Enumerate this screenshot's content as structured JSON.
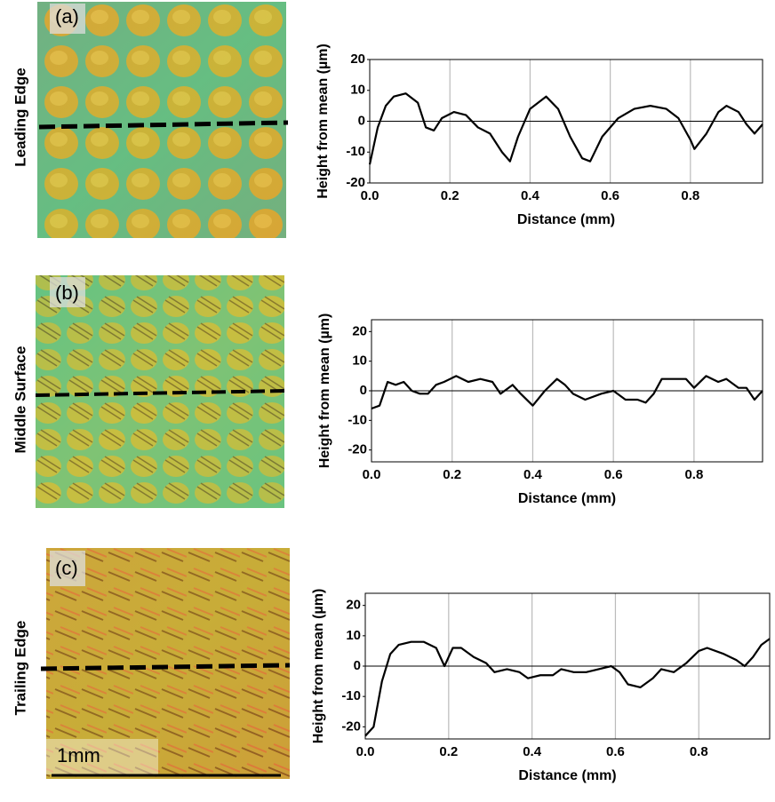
{
  "panels": [
    {
      "label": "(a)",
      "side_label": "Leading Edge"
    },
    {
      "label": "(b)",
      "side_label": "Middle Surface"
    },
    {
      "label": "(c)",
      "side_label": "Trailing Edge"
    }
  ],
  "scale_bar": "1mm",
  "chart_data": [
    {
      "type": "line",
      "x_label": "Distance (mm)",
      "y_label": "Height from mean (µm)",
      "xlim": [
        0,
        0.98
      ],
      "ylim": [
        -20,
        20
      ],
      "xticks": [
        {
          "value": 0,
          "label": "0.0"
        },
        0.2,
        0.4,
        0.6,
        0.8
      ],
      "yticks": [
        -20,
        -10,
        0,
        10,
        20
      ],
      "grid": "x",
      "zero_line": true,
      "x": [
        0,
        0.02,
        0.04,
        0.06,
        0.09,
        0.12,
        0.14,
        0.16,
        0.18,
        0.21,
        0.24,
        0.27,
        0.3,
        0.33,
        0.35,
        0.37,
        0.4,
        0.44,
        0.47,
        0.5,
        0.53,
        0.55,
        0.58,
        0.62,
        0.66,
        0.7,
        0.74,
        0.77,
        0.8,
        0.81,
        0.84,
        0.87,
        0.89,
        0.92,
        0.94,
        0.96,
        0.98
      ],
      "series": [
        {
          "color": "#000000",
          "values": [
            -14,
            -2,
            5,
            8,
            9,
            6,
            -2,
            -3,
            1,
            3,
            2,
            -2,
            -4,
            -10,
            -13,
            -5,
            4,
            8,
            4,
            -5,
            -12,
            -13,
            -5,
            1,
            4,
            5,
            4,
            1,
            -6,
            -9,
            -4,
            3,
            5,
            3,
            -1,
            -4,
            -1
          ]
        }
      ]
    },
    {
      "type": "line",
      "x_label": "Distance (mm)",
      "y_label": "Height from mean (µm)",
      "xlim": [
        0,
        0.97
      ],
      "ylim": [
        -24,
        24
      ],
      "xticks": [
        {
          "value": 0,
          "label": "0.0"
        },
        0.2,
        0.4,
        0.6,
        0.8
      ],
      "yticks": [
        -20,
        -10,
        0,
        10,
        20
      ],
      "grid": "x",
      "zero_line": true,
      "x": [
        0,
        0.02,
        0.04,
        0.06,
        0.08,
        0.1,
        0.12,
        0.14,
        0.16,
        0.18,
        0.21,
        0.24,
        0.27,
        0.3,
        0.32,
        0.35,
        0.37,
        0.4,
        0.43,
        0.46,
        0.48,
        0.5,
        0.53,
        0.57,
        0.6,
        0.63,
        0.66,
        0.68,
        0.7,
        0.72,
        0.75,
        0.78,
        0.8,
        0.83,
        0.86,
        0.88,
        0.91,
        0.93,
        0.95,
        0.97
      ],
      "series": [
        {
          "color": "#000000",
          "values": [
            -6,
            -5,
            3,
            2,
            3,
            0,
            -1,
            -1,
            2,
            3,
            5,
            3,
            4,
            3,
            -1,
            2,
            -1,
            -5,
            0,
            4,
            2,
            -1,
            -3,
            -1,
            0,
            -3,
            -3,
            -4,
            -1,
            4,
            4,
            4,
            1,
            5,
            3,
            4,
            1,
            1,
            -3,
            0
          ]
        }
      ]
    },
    {
      "type": "line",
      "x_label": "Distance (mm)",
      "y_label": "Height from mean (µm)",
      "xlim": [
        0,
        0.97
      ],
      "ylim": [
        -24,
        24
      ],
      "xticks": [
        {
          "value": 0,
          "label": "0.0"
        },
        0.2,
        0.4,
        0.6,
        0.8
      ],
      "yticks": [
        -20,
        -10,
        0,
        10,
        20
      ],
      "grid": "x",
      "zero_line": true,
      "x": [
        0,
        0.02,
        0.04,
        0.06,
        0.08,
        0.11,
        0.14,
        0.17,
        0.19,
        0.21,
        0.23,
        0.26,
        0.29,
        0.31,
        0.34,
        0.37,
        0.39,
        0.42,
        0.45,
        0.47,
        0.5,
        0.53,
        0.56,
        0.59,
        0.61,
        0.63,
        0.66,
        0.69,
        0.71,
        0.74,
        0.77,
        0.8,
        0.82,
        0.86,
        0.89,
        0.91,
        0.93,
        0.95,
        0.97
      ],
      "series": [
        {
          "color": "#000000",
          "values": [
            -23,
            -20,
            -5,
            4,
            7,
            8,
            8,
            6,
            0,
            6,
            6,
            3,
            1,
            -2,
            -1,
            -2,
            -4,
            -3,
            -3,
            -1,
            -2,
            -2,
            -1,
            0,
            -2,
            -6,
            -7,
            -4,
            -1,
            -2,
            1,
            5,
            6,
            4,
            2,
            0,
            3,
            7,
            9
          ]
        }
      ]
    }
  ]
}
